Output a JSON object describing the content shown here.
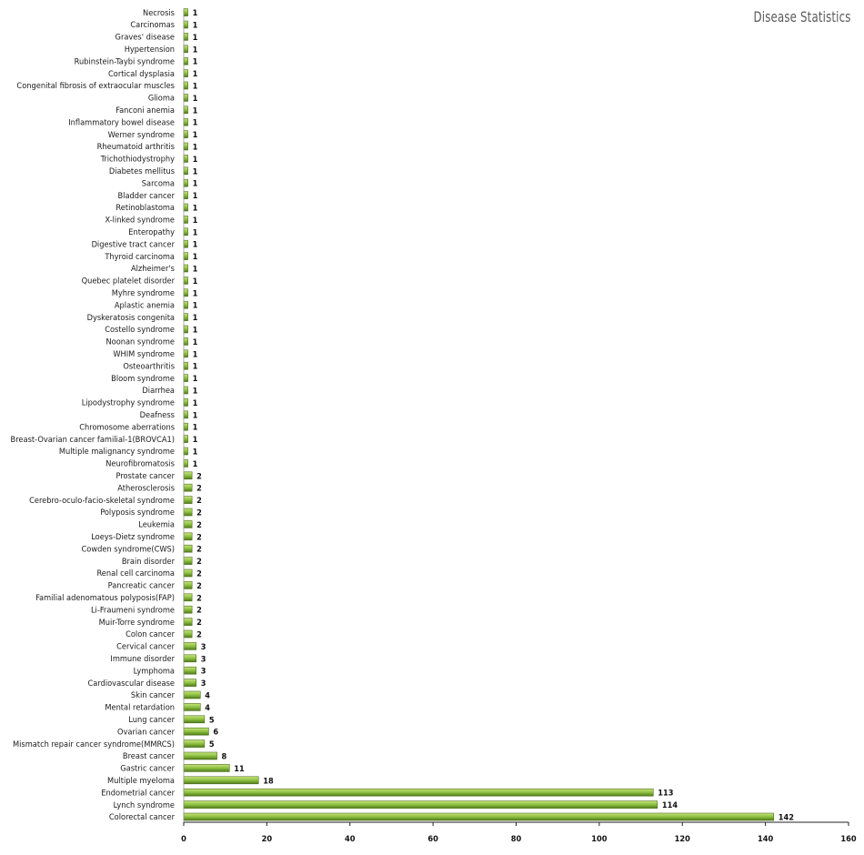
{
  "chart_data": {
    "type": "bar",
    "orientation": "horizontal",
    "title": "Disease Statistics",
    "xlim": [
      0,
      160
    ],
    "xticks": [
      0,
      20,
      40,
      60,
      80,
      100,
      120,
      140,
      160
    ],
    "grid": false,
    "bar_color": "#8DC040",
    "categories": [
      "Colorectal cancer",
      "Lynch syndrome",
      "Endometrial cancer",
      "Multiple myeloma",
      "Gastric cancer",
      "Breast cancer",
      "Mismatch repair cancer syndrome(MMRCS)",
      "Ovarian cancer",
      "Lung cancer",
      "Mental retardation",
      "Skin cancer",
      "Cardiovascular disease",
      "Lymphoma",
      "Immune disorder",
      "Cervical cancer",
      "Colon cancer",
      "Muir-Torre syndrome",
      "Li-Fraumeni syndrome",
      "Familial adenomatous polyposis(FAP)",
      "Pancreatic cancer",
      "Renal cell carcinoma",
      "Brain disorder",
      "Cowden syndrome(CWS)",
      "Loeys-Dietz syndrome",
      "Leukemia",
      "Polyposis syndrome",
      "Cerebro-oculo-facio-skeletal syndrome",
      "Atherosclerosis",
      "Prostate cancer",
      "Neurofibromatosis",
      "Multiple malignancy syndrome",
      "Breast-Ovarian cancer familial-1(BROVCA1)",
      "Chromosome aberrations",
      "Deafness",
      "Lipodystrophy syndrome",
      "Diarrhea",
      "Bloom syndrome",
      "Osteoarthritis",
      "WHIM syndrome",
      "Noonan syndrome",
      "Costello syndrome",
      "Dyskeratosis congenita",
      "Aplastic anemia",
      "Myhre syndrome",
      "Quebec platelet disorder",
      "Alzheimer's",
      "Thyroid carcinoma",
      "Digestive tract cancer",
      "Enteropathy",
      "X-linked syndrome",
      "Retinoblastoma",
      "Bladder cancer",
      "Sarcoma",
      "Diabetes mellitus",
      "Trichothiodystrophy",
      "Rheumatoid arthritis",
      "Werner syndrome",
      "Inflammatory  bowel disease",
      "Fanconi anemia",
      "Glioma",
      "Congenital fibrosis of extraocular muscles",
      "Cortical dysplasia",
      "Rubinstein-Taybi syndrome",
      "Hypertension",
      "Graves' disease",
      "Carcinomas",
      "Necrosis"
    ],
    "values": [
      142,
      114,
      113,
      18,
      11,
      8,
      5,
      6,
      5,
      4,
      4,
      3,
      3,
      3,
      3,
      2,
      2,
      2,
      2,
      2,
      2,
      2,
      2,
      2,
      2,
      2,
      2,
      2,
      2,
      1,
      1,
      1,
      1,
      1,
      1,
      1,
      1,
      1,
      1,
      1,
      1,
      1,
      1,
      1,
      1,
      1,
      1,
      1,
      1,
      1,
      1,
      1,
      1,
      1,
      1,
      1,
      1,
      1,
      1,
      1,
      1,
      1,
      1,
      1,
      1,
      1,
      1
    ]
  }
}
